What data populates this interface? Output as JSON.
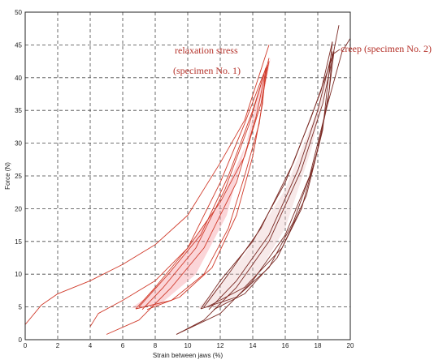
{
  "chart_data": {
    "type": "line",
    "title": "",
    "xlabel": "Strain between jaws (%)",
    "ylabel": "Force (N)",
    "xlim": [
      0,
      20
    ],
    "ylim": [
      0,
      50
    ],
    "xticks": [
      0,
      2,
      4,
      6,
      8,
      10,
      12,
      14,
      16,
      18,
      20
    ],
    "yticks": [
      0,
      5,
      10,
      15,
      20,
      25,
      30,
      35,
      40,
      45,
      50
    ],
    "grid": true,
    "annotations": [
      {
        "text": "relaxation stress",
        "color": "#b5322a"
      },
      {
        "text": "(specimen No. 1)",
        "color": "#b5322a"
      },
      {
        "text": "creep (specimen No. 2)",
        "color": "#7a2a24"
      }
    ],
    "series": [
      {
        "color": "#d03a2a",
        "points": [
          [
            0,
            2.3
          ],
          [
            1,
            5.3
          ],
          [
            2,
            7
          ],
          [
            4,
            9
          ],
          [
            6,
            11.5
          ],
          [
            8,
            14.5
          ],
          [
            10,
            19
          ],
          [
            12,
            27
          ],
          [
            13.5,
            33.5
          ],
          [
            15,
            45
          ]
        ]
      },
      {
        "color": "#d03a2a",
        "points": [
          [
            4,
            2
          ],
          [
            4.5,
            4
          ],
          [
            6,
            6
          ],
          [
            8,
            9
          ],
          [
            10,
            14
          ],
          [
            12,
            21
          ],
          [
            13.5,
            28
          ],
          [
            14.5,
            36
          ],
          [
            15,
            42.5
          ]
        ]
      },
      {
        "color": "#d03a2a",
        "points": [
          [
            5,
            0.8
          ],
          [
            7,
            3
          ],
          [
            9,
            8
          ],
          [
            11,
            14
          ],
          [
            13,
            24
          ],
          [
            14.2,
            34
          ],
          [
            14.8,
            41
          ],
          [
            15,
            43
          ]
        ]
      },
      {
        "color": "#d03a2a",
        "points": [
          [
            6.8,
            4.7
          ],
          [
            8,
            8
          ],
          [
            10,
            14
          ],
          [
            12,
            24
          ],
          [
            13.5,
            33
          ],
          [
            14.5,
            39.5
          ],
          [
            14.9,
            42
          ]
        ]
      },
      {
        "color": "#d03a2a",
        "points": [
          [
            6.8,
            4.7
          ],
          [
            9,
            6
          ],
          [
            11,
            10
          ],
          [
            12.5,
            17
          ],
          [
            13.5,
            25
          ],
          [
            14.4,
            33
          ],
          [
            14.9,
            42
          ]
        ]
      },
      {
        "color": "#d03a2a",
        "points": [
          [
            7.2,
            4.6
          ],
          [
            8.5,
            8
          ],
          [
            10.5,
            14
          ],
          [
            12.3,
            23
          ],
          [
            13.8,
            33
          ],
          [
            14.8,
            41.5
          ]
        ]
      },
      {
        "color": "#d03a2a",
        "points": [
          [
            7.5,
            4.6
          ],
          [
            9.5,
            6.5
          ],
          [
            11.5,
            11
          ],
          [
            13,
            19
          ],
          [
            14,
            28
          ],
          [
            14.6,
            36
          ],
          [
            14.8,
            41.5
          ]
        ]
      },
      {
        "color": "#d03a2a",
        "points": [
          [
            7,
            5
          ],
          [
            8.8,
            10
          ],
          [
            10.8,
            16
          ],
          [
            12.5,
            25
          ],
          [
            14,
            35
          ],
          [
            14.7,
            40.5
          ]
        ]
      },
      {
        "color": "#7a2a24",
        "points": [
          [
            9.3,
            0.8
          ],
          [
            11,
            3
          ],
          [
            13,
            8
          ],
          [
            15,
            15
          ],
          [
            17,
            26
          ],
          [
            18.3,
            36
          ],
          [
            18.9,
            43
          ],
          [
            19.3,
            48
          ]
        ]
      },
      {
        "color": "#7a2a24",
        "points": [
          [
            9.3,
            0.8
          ],
          [
            12,
            4
          ],
          [
            14,
            9
          ],
          [
            16,
            16
          ],
          [
            17.5,
            25
          ],
          [
            18.5,
            35
          ],
          [
            19.5,
            44
          ],
          [
            20,
            46
          ]
        ]
      },
      {
        "color": "#7a2a24",
        "points": [
          [
            10.8,
            4.7
          ],
          [
            12,
            9
          ],
          [
            14,
            15
          ],
          [
            16,
            24
          ],
          [
            17.6,
            34
          ],
          [
            18.6,
            41
          ],
          [
            19,
            44
          ]
        ]
      },
      {
        "color": "#7a2a24",
        "points": [
          [
            10.8,
            4.7
          ],
          [
            13,
            6.5
          ],
          [
            15,
            11
          ],
          [
            16.5,
            18
          ],
          [
            17.8,
            27
          ],
          [
            18.6,
            36
          ],
          [
            19,
            44
          ]
        ]
      },
      {
        "color": "#7a2a24",
        "points": [
          [
            11.3,
            4.6
          ],
          [
            13,
            9
          ],
          [
            15,
            16
          ],
          [
            16.8,
            26
          ],
          [
            18,
            35
          ],
          [
            18.8,
            43
          ]
        ]
      },
      {
        "color": "#7a2a24",
        "points": [
          [
            11.6,
            4.6
          ],
          [
            13.5,
            7
          ],
          [
            15.5,
            12.5
          ],
          [
            17,
            20
          ],
          [
            18.1,
            30
          ],
          [
            18.7,
            38
          ],
          [
            18.9,
            44
          ]
        ]
      },
      {
        "color": "#7a2a24",
        "points": [
          [
            11,
            5
          ],
          [
            12.5,
            10
          ],
          [
            14.5,
            17
          ],
          [
            16.5,
            27
          ],
          [
            18.2,
            38
          ],
          [
            18.9,
            45.5
          ]
        ]
      },
      {
        "color": "#7a2a24",
        "points": [
          [
            11.2,
            5
          ],
          [
            13.5,
            8
          ],
          [
            15.8,
            14
          ],
          [
            17.3,
            22
          ],
          [
            18.3,
            32
          ],
          [
            18.9,
            45.5
          ]
        ]
      }
    ]
  }
}
